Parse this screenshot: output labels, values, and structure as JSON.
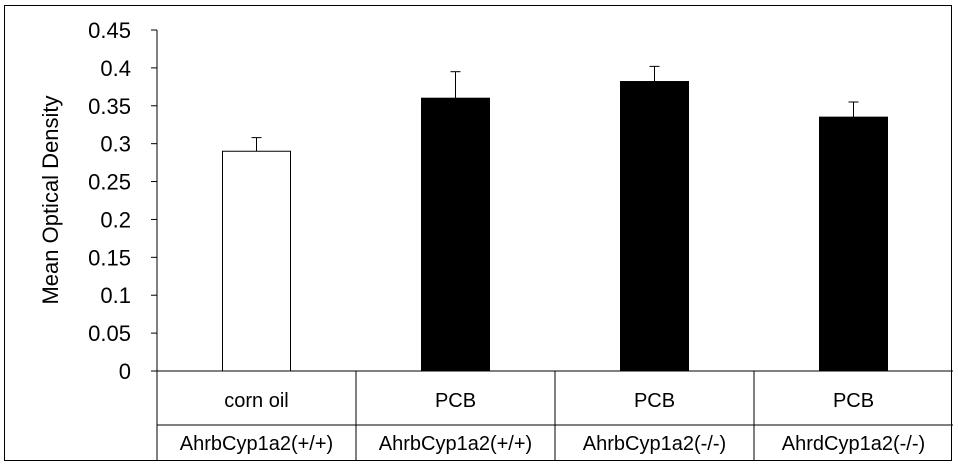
{
  "chart_data": {
    "type": "bar",
    "title": "",
    "ylabel": "Mean Optical Density",
    "xlabel": "",
    "ylim": [
      0,
      0.45
    ],
    "yticks": [
      "0",
      "0.05",
      "0.1",
      "0.15",
      "0.2",
      "0.25",
      "0.3",
      "0.35",
      "0.4",
      "0.45"
    ],
    "categories": [
      {
        "line1": "corn oil",
        "line2": "AhrbCyp1a2(+/+)"
      },
      {
        "line1": "PCB",
        "line2": "AhrbCyp1a2(+/+)"
      },
      {
        "line1": "PCB",
        "line2": "AhrbCyp1a2(-/-)"
      },
      {
        "line1": "PCB",
        "line2": "AhrdCyp1a2(-/-)"
      }
    ],
    "values": [
      0.29,
      0.36,
      0.382,
      0.335
    ],
    "errors": [
      0.018,
      0.035,
      0.02,
      0.02
    ],
    "bar_colors": [
      "#ffffff",
      "#000000",
      "#000000",
      "#000000"
    ],
    "grid": false,
    "legend": "none"
  }
}
